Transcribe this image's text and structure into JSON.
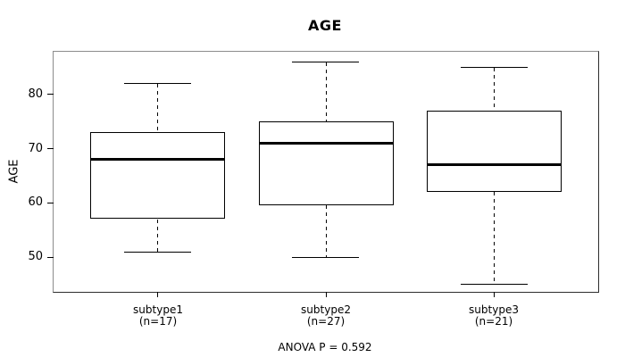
{
  "title": "AGE",
  "y_axis": {
    "label": "AGE",
    "tick_labels": [
      "50",
      "60",
      "70",
      "80"
    ]
  },
  "x_axis": {
    "categories": [
      "subtype1",
      "subtype2",
      "subtype3"
    ],
    "counts": [
      "(n=17)",
      "(n=27)",
      "(n=21)"
    ]
  },
  "footer": {
    "anova_text": "ANOVA P = 0.592"
  },
  "colors": {
    "line": "#000000",
    "box_fill": "#ffffff",
    "frame_light": "#8c8c8c",
    "frame_dark": "#2e2e2e",
    "text": "#000000",
    "background": "#ffffff"
  },
  "chart_data": {
    "type": "boxplot",
    "title": "AGE",
    "xlabel": "",
    "ylabel": "AGE",
    "categories": [
      "subtype1",
      "subtype2",
      "subtype3"
    ],
    "series": [
      {
        "name": "subtype1",
        "n": 17,
        "min": 51,
        "q1": 57,
        "median": 68,
        "q3": 73,
        "max": 82,
        "outliers": []
      },
      {
        "name": "subtype2",
        "n": 27,
        "min": 50,
        "q1": 59.5,
        "median": 71,
        "q3": 75,
        "max": 86,
        "outliers": []
      },
      {
        "name": "subtype3",
        "n": 21,
        "min": 45,
        "q1": 62,
        "median": 67,
        "q3": 77,
        "max": 85,
        "outliers": []
      }
    ],
    "y_ticks": [
      50,
      60,
      70,
      80
    ],
    "ylim": [
      43.6,
      87.9
    ],
    "xlim": [
      0.38,
      3.62
    ],
    "box_width_units": 0.8,
    "grid": false,
    "legend": null,
    "annotation": "ANOVA P = 0.592"
  }
}
